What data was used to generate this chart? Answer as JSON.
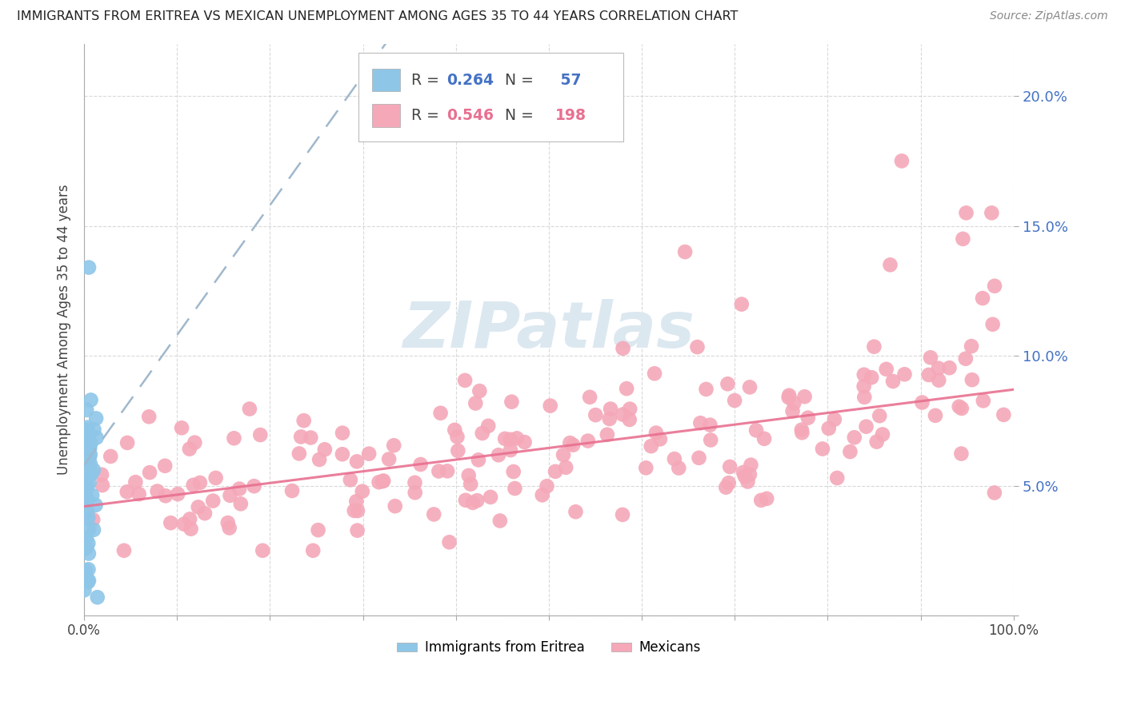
{
  "title": "IMMIGRANTS FROM ERITREA VS MEXICAN UNEMPLOYMENT AMONG AGES 35 TO 44 YEARS CORRELATION CHART",
  "source": "Source: ZipAtlas.com",
  "ylabel": "Unemployment Among Ages 35 to 44 years",
  "xlim": [
    0,
    1.0
  ],
  "ylim": [
    0,
    0.22
  ],
  "xtick_positions": [
    0.0,
    0.1,
    0.2,
    0.3,
    0.4,
    0.5,
    0.6,
    0.7,
    0.8,
    0.9,
    1.0
  ],
  "xticklabels": [
    "0.0%",
    "",
    "",
    "",
    "",
    "",
    "",
    "",
    "",
    "",
    "100.0%"
  ],
  "ytick_positions": [
    0.0,
    0.05,
    0.1,
    0.15,
    0.2
  ],
  "yticklabels_right": [
    "",
    "5.0%",
    "10.0%",
    "15.0%",
    "20.0%"
  ],
  "eritrea_R": 0.264,
  "eritrea_N": 57,
  "mexican_R": 0.546,
  "mexican_N": 198,
  "eritrea_color": "#8ec6e8",
  "mexican_color": "#f4a8b8",
  "eritrea_line_color": "#4d94c4",
  "mexican_line_color": "#e87090",
  "eritrea_line_intercept": 0.058,
  "eritrea_line_slope": 0.5,
  "mexican_line_intercept": 0.042,
  "mexican_line_slope": 0.045,
  "watermark_text": "ZIPatlas",
  "watermark_color": "#dce8f0",
  "background_color": "#ffffff",
  "grid_color": "#d0d0d0",
  "title_color": "#222222",
  "source_color": "#888888",
  "right_axis_color": "#4472c4",
  "legend_R_color_eritrea": "#4472c4",
  "legend_N_color_eritrea": "#4472c4",
  "legend_R_color_mexican": "#e87090",
  "legend_N_color_mexican": "#e87090"
}
